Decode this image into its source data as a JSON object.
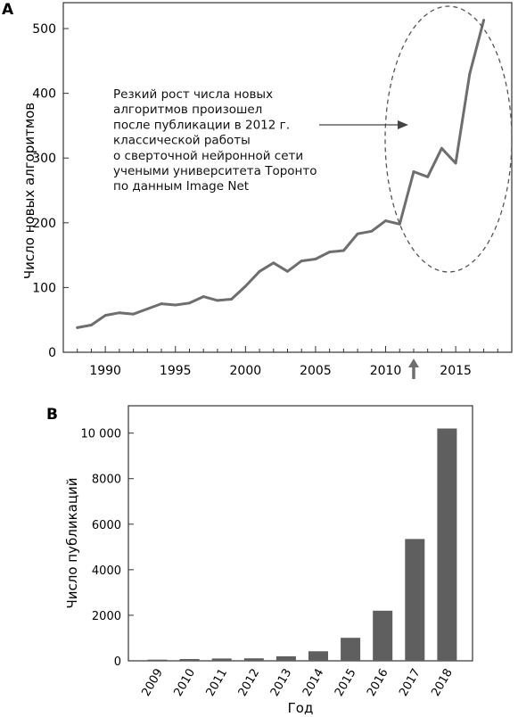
{
  "chart_data": [
    {
      "panel": "A",
      "type": "line",
      "ylabel": "Число новых алгоритмов",
      "xlabel": "",
      "xlim": [
        1987,
        2019
      ],
      "ylim": [
        0,
        540
      ],
      "x_ticks": [
        1990,
        1995,
        2000,
        2005,
        2010,
        2015
      ],
      "y_ticks": [
        0,
        100,
        200,
        300,
        400,
        500
      ],
      "grid": false,
      "series": [
        {
          "x": [
            1988,
            1989,
            1990,
            1991,
            1992,
            1993,
            1994,
            1995,
            1996,
            1997,
            1998,
            1999,
            2000,
            2001,
            2002,
            2003,
            2004,
            2005,
            2006,
            2007,
            2008,
            2009,
            2010,
            2011,
            2012,
            2013,
            2014,
            2015,
            2016,
            2017
          ],
          "y": [
            38,
            42,
            57,
            61,
            59,
            67,
            75,
            73,
            76,
            86,
            80,
            82,
            102,
            125,
            138,
            125,
            141,
            144,
            155,
            157,
            183,
            187,
            203,
            198,
            279,
            271,
            315,
            292,
            430,
            513
          ]
        }
      ],
      "annotation": {
        "lines": [
          "Резкий рост числа новых",
          "алгоритмов произошел",
          "после публикации в 2012 г.",
          "классической работы",
          "о сверточной нейронной сети",
          "учеными университета Торонто",
          "по данным Image Net"
        ],
        "marker_year": 2012
      },
      "color": "#6e6e6e"
    },
    {
      "panel": "B",
      "type": "bar",
      "xlabel": "Год",
      "ylabel": "Число публикаций",
      "categories": [
        "2009",
        "2010",
        "2011",
        "2012",
        "2013",
        "2014",
        "2015",
        "2016",
        "2017",
        "2018"
      ],
      "values": [
        50,
        80,
        100,
        110,
        200,
        420,
        1010,
        2200,
        5350,
        10200
      ],
      "ylim": [
        0,
        11200
      ],
      "y_ticks": [
        0,
        2000,
        4000,
        6000,
        8000,
        10000
      ],
      "y_tick_labels": [
        "0",
        "2000",
        "4000",
        "6000",
        "8000",
        "10 000"
      ],
      "grid": false,
      "color": "#5f5f5f"
    }
  ]
}
